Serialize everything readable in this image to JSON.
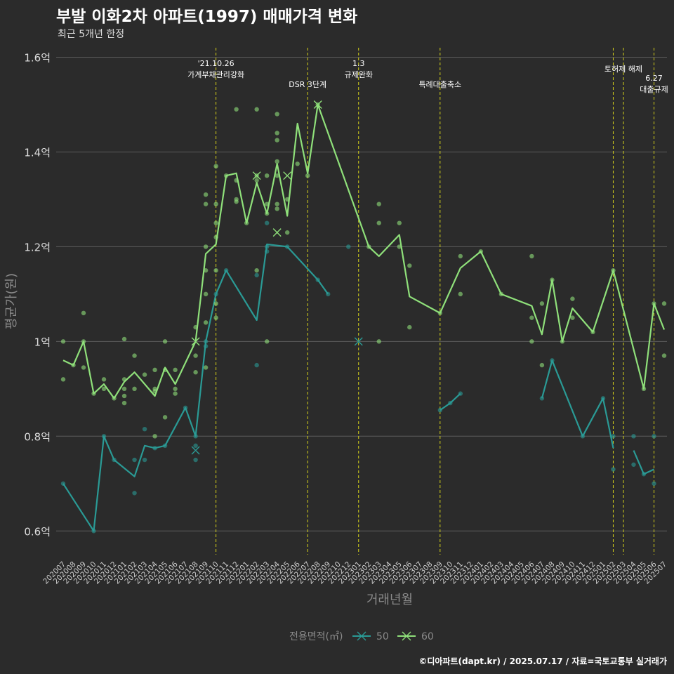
{
  "chart_data": {
    "type": "line",
    "title": "부발 이화2차 아파트(1997) 매매가격 변화",
    "subtitle": "최근 5개년 한정",
    "xlabel": "거래년월",
    "ylabel": "평균가(원)",
    "caption": "©디아파트(dapt.kr) / 2025.07.17 / 자료=국토교통부 실거래가",
    "legend_title": "전용면적(㎡)",
    "legend_position": "bottom",
    "grid": true,
    "ylim": [
      0.55,
      1.62
    ],
    "y_ticks": [
      {
        "value": 0.6,
        "label": "0.6억"
      },
      {
        "value": 0.8,
        "label": "0.8억"
      },
      {
        "value": 1.0,
        "label": "1억"
      },
      {
        "value": 1.2,
        "label": "1.2억"
      },
      {
        "value": 1.4,
        "label": "1.4억"
      },
      {
        "value": 1.6,
        "label": "1.6억"
      }
    ],
    "categories": [
      "202007",
      "202008",
      "202009",
      "202010",
      "202011",
      "202012",
      "202101",
      "202102",
      "202103",
      "202104",
      "202105",
      "202106",
      "202107",
      "202108",
      "202109",
      "202110",
      "202111",
      "202112",
      "202201",
      "202202",
      "202203",
      "202204",
      "202205",
      "202206",
      "202207",
      "202208",
      "202209",
      "202210",
      "202212",
      "202301",
      "202302",
      "202303",
      "202304",
      "202305",
      "202306",
      "202307",
      "202308",
      "202309",
      "202310",
      "202311",
      "202312",
      "202401",
      "202402",
      "202403",
      "202404",
      "202405",
      "202406",
      "202407",
      "202408",
      "202409",
      "202410",
      "202411",
      "202412",
      "202501",
      "202502",
      "202503",
      "202504",
      "202505",
      "202506",
      "202507"
    ],
    "series": [
      {
        "name": "50",
        "color": "#2a9a95",
        "lines": [
          [
            [
              "202007",
              0.7
            ],
            [
              "202010",
              0.6
            ],
            [
              "202011",
              0.8
            ],
            [
              "202012",
              0.75
            ],
            [
              "202102",
              0.715
            ],
            [
              "202103",
              0.78
            ],
            [
              "202104",
              0.775
            ],
            [
              "202105",
              0.78
            ],
            [
              "202107",
              0.86
            ],
            [
              "202108",
              0.8
            ],
            [
              "202109",
              1.0
            ],
            [
              "202110",
              1.1
            ],
            [
              "202111",
              1.15
            ],
            [
              "202202",
              1.045
            ],
            [
              "202203",
              1.205
            ],
            [
              "202205",
              1.2
            ],
            [
              "202208",
              1.13
            ],
            [
              "202209",
              1.1
            ]
          ],
          [
            [
              "202309",
              0.855
            ],
            [
              "202310",
              0.87
            ],
            [
              "202311",
              0.89
            ]
          ],
          [
            [
              "202407",
              0.88
            ],
            [
              "202408",
              0.96
            ],
            [
              "202411",
              0.8
            ],
            [
              "202501",
              0.88
            ],
            [
              "202502",
              0.775
            ]
          ],
          [
            [
              "202504",
              0.77
            ],
            [
              "202505",
              0.72
            ],
            [
              "202506",
              0.73
            ]
          ]
        ],
        "points": [
          [
            "202007",
            0.7
          ],
          [
            "202010",
            0.6
          ],
          [
            "202011",
            0.8
          ],
          [
            "202012",
            0.75
          ],
          [
            "202102",
            0.68
          ],
          [
            "202102",
            0.75
          ],
          [
            "202103",
            0.75
          ],
          [
            "202103",
            0.815
          ],
          [
            "202104",
            0.775
          ],
          [
            "202105",
            0.78
          ],
          [
            "202107",
            0.86
          ],
          [
            "202108",
            0.8
          ],
          [
            "202108",
            0.75
          ],
          [
            "202108",
            0.78
          ],
          [
            "202109",
            1.0
          ],
          [
            "202109",
            0.99
          ],
          [
            "202110",
            1.1
          ],
          [
            "202111",
            1.15
          ],
          [
            "202202",
            0.95
          ],
          [
            "202202",
            1.14
          ],
          [
            "202203",
            1.2
          ],
          [
            "202203",
            1.19
          ],
          [
            "202203",
            1.25
          ],
          [
            "202205",
            1.2
          ],
          [
            "202208",
            1.13
          ],
          [
            "202209",
            1.1
          ],
          [
            "202212",
            1.2
          ],
          [
            "202309",
            0.855
          ],
          [
            "202310",
            0.87
          ],
          [
            "202311",
            0.89
          ],
          [
            "202407",
            0.88
          ],
          [
            "202408",
            0.96
          ],
          [
            "202411",
            0.8
          ],
          [
            "202501",
            0.88
          ],
          [
            "202502",
            0.8
          ],
          [
            "202502",
            0.73
          ],
          [
            "202504",
            0.8
          ],
          [
            "202504",
            0.74
          ],
          [
            "202505",
            0.72
          ],
          [
            "202506",
            0.7
          ],
          [
            "202506",
            0.8
          ]
        ],
        "crosses": [
          [
            "202108",
            0.77
          ],
          [
            "202301",
            1.0
          ]
        ]
      },
      {
        "name": "60",
        "color": "#8fe07a",
        "lines": [
          [
            [
              "202007",
              0.96
            ],
            [
              "202008",
              0.95
            ],
            [
              "202009",
              1.0
            ],
            [
              "202010",
              0.89
            ],
            [
              "202011",
              0.91
            ],
            [
              "202012",
              0.88
            ],
            [
              "202101",
              0.915
            ],
            [
              "202102",
              0.935
            ],
            [
              "202104",
              0.885
            ],
            [
              "202105",
              0.945
            ],
            [
              "202106",
              0.91
            ],
            [
              "202108",
              1.0
            ],
            [
              "202109",
              1.185
            ],
            [
              "202110",
              1.205
            ],
            [
              "202111",
              1.35
            ],
            [
              "202112",
              1.355
            ],
            [
              "202201",
              1.25
            ],
            [
              "202202",
              1.335
            ],
            [
              "202203",
              1.27
            ],
            [
              "202204",
              1.375
            ],
            [
              "202205",
              1.265
            ],
            [
              "202206",
              1.46
            ],
            [
              "202207",
              1.355
            ],
            [
              "202208",
              1.5
            ],
            [
              "202302",
              1.2
            ],
            [
              "202303",
              1.18
            ],
            [
              "202305",
              1.225
            ],
            [
              "202306",
              1.095
            ],
            [
              "202309",
              1.06
            ],
            [
              "202311",
              1.155
            ],
            [
              "202401",
              1.19
            ],
            [
              "202403",
              1.1
            ],
            [
              "202406",
              1.075
            ],
            [
              "202407",
              1.015
            ],
            [
              "202408",
              1.13
            ],
            [
              "202409",
              1.0
            ],
            [
              "202410",
              1.07
            ],
            [
              "202412",
              1.02
            ],
            [
              "202502",
              1.15
            ],
            [
              "202505",
              0.9
            ],
            [
              "202506",
              1.08
            ],
            [
              "202507",
              1.025
            ]
          ]
        ],
        "points": [
          [
            "202007",
            1.0
          ],
          [
            "202007",
            0.92
          ],
          [
            "202008",
            0.95
          ],
          [
            "202009",
            1.06
          ],
          [
            "202009",
            0.945
          ],
          [
            "202009",
            1.0
          ],
          [
            "202010",
            0.89
          ],
          [
            "202011",
            0.92
          ],
          [
            "202011",
            0.9
          ],
          [
            "202012",
            0.88
          ],
          [
            "202101",
            1.005
          ],
          [
            "202101",
            0.92
          ],
          [
            "202101",
            0.885
          ],
          [
            "202101",
            0.87
          ],
          [
            "202101",
            0.9
          ],
          [
            "202102",
            0.97
          ],
          [
            "202102",
            0.9
          ],
          [
            "202103",
            0.93
          ],
          [
            "202104",
            0.94
          ],
          [
            "202104",
            0.9
          ],
          [
            "202104",
            0.8
          ],
          [
            "202104",
            0.895
          ],
          [
            "202105",
            1.0
          ],
          [
            "202105",
            0.94
          ],
          [
            "202105",
            0.84
          ],
          [
            "202106",
            0.94
          ],
          [
            "202106",
            0.9
          ],
          [
            "202106",
            0.89
          ],
          [
            "202108",
            1.03
          ],
          [
            "202108",
            0.97
          ],
          [
            "202108",
            0.935
          ],
          [
            "202109",
            1.31
          ],
          [
            "202109",
            1.29
          ],
          [
            "202109",
            1.2
          ],
          [
            "202109",
            1.15
          ],
          [
            "202109",
            1.1
          ],
          [
            "202109",
            1.04
          ],
          [
            "202109",
            0.945
          ],
          [
            "202110",
            1.37
          ],
          [
            "202110",
            1.29
          ],
          [
            "202110",
            1.25
          ],
          [
            "202110",
            1.22
          ],
          [
            "202110",
            1.15
          ],
          [
            "202110",
            1.08
          ],
          [
            "202110",
            1.05
          ],
          [
            "202111",
            1.35
          ],
          [
            "202112",
            1.49
          ],
          [
            "202112",
            1.34
          ],
          [
            "202112",
            1.3
          ],
          [
            "202112",
            1.295
          ],
          [
            "202201",
            1.25
          ],
          [
            "202202",
            1.49
          ],
          [
            "202202",
            1.35
          ],
          [
            "202202",
            1.34
          ],
          [
            "202202",
            1.15
          ],
          [
            "202203",
            1.35
          ],
          [
            "202203",
            1.29
          ],
          [
            "202203",
            1.27
          ],
          [
            "202203",
            1.0
          ],
          [
            "202204",
            1.48
          ],
          [
            "202204",
            1.44
          ],
          [
            "202204",
            1.425
          ],
          [
            "202204",
            1.38
          ],
          [
            "202204",
            1.35
          ],
          [
            "202204",
            1.29
          ],
          [
            "202204",
            1.28
          ],
          [
            "202205",
            1.3
          ],
          [
            "202205",
            1.23
          ],
          [
            "202206",
            1.375
          ],
          [
            "202207",
            1.35
          ],
          [
            "202208",
            1.5
          ],
          [
            "202302",
            1.2
          ],
          [
            "202303",
            1.29
          ],
          [
            "202303",
            1.25
          ],
          [
            "202303",
            1.0
          ],
          [
            "202305",
            1.25
          ],
          [
            "202305",
            1.2
          ],
          [
            "202306",
            1.16
          ],
          [
            "202306",
            1.03
          ],
          [
            "202309",
            1.06
          ],
          [
            "202311",
            1.18
          ],
          [
            "202311",
            1.1
          ],
          [
            "202401",
            1.19
          ],
          [
            "202403",
            1.1
          ],
          [
            "202406",
            1.18
          ],
          [
            "202406",
            1.05
          ],
          [
            "202406",
            1.0
          ],
          [
            "202407",
            1.08
          ],
          [
            "202407",
            0.95
          ],
          [
            "202408",
            1.13
          ],
          [
            "202409",
            1.0
          ],
          [
            "202410",
            1.09
          ],
          [
            "202410",
            1.05
          ],
          [
            "202412",
            1.02
          ],
          [
            "202502",
            1.15
          ],
          [
            "202505",
            0.9
          ],
          [
            "202506",
            1.08
          ],
          [
            "202507",
            1.08
          ],
          [
            "202507",
            0.97
          ]
        ],
        "crosses": [
          [
            "202108",
            1.0
          ],
          [
            "202202",
            1.35
          ],
          [
            "202204",
            1.23
          ],
          [
            "202205",
            1.35
          ],
          [
            "202208",
            1.5
          ]
        ]
      }
    ],
    "events": [
      {
        "at": "202110",
        "offset": 0.0,
        "lines": [
          "'21.10.26",
          "가계부채관리강화"
        ],
        "level": 1
      },
      {
        "at": "202207",
        "offset": 0.0,
        "lines": [
          "DSR 3단계"
        ],
        "level": 2
      },
      {
        "at": "202301",
        "offset": 0.0,
        "lines": [
          "1.3",
          "규제완화"
        ],
        "level": 1
      },
      {
        "at": "202309",
        "offset": 0.0,
        "lines": [
          "특례대출축소"
        ],
        "level": 2
      },
      {
        "at": "202502",
        "offset": 0.0,
        "lines": [],
        "level": 0
      },
      {
        "at": "202503",
        "offset": 0.0,
        "lines": [
          "토허제 해제"
        ],
        "level": 0
      },
      {
        "at": "202506",
        "offset": 0.0,
        "lines": [
          "6.27",
          "대출규제"
        ],
        "level": 3
      }
    ]
  }
}
